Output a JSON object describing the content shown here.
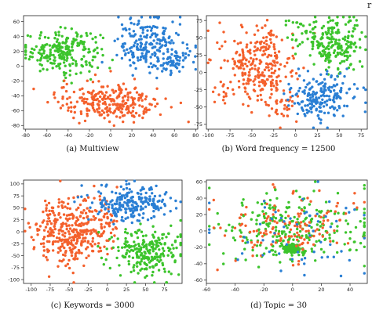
{
  "stray_mark": "r",
  "colors": {
    "orange": "#f4602c",
    "blue": "#2a7fd4",
    "green": "#3cc42c"
  },
  "chart_data": [
    {
      "type": "scatter",
      "caption": "(a) Multiview",
      "xlim": [
        -82,
        82
      ],
      "ylim": [
        -85,
        68
      ],
      "xticks": [
        -80,
        -60,
        -40,
        -20,
        0,
        20,
        40,
        60,
        80
      ],
      "yticks": [
        60,
        40,
        20,
        0,
        -20,
        -40,
        -60,
        -80
      ],
      "series": [
        {
          "color": "green",
          "clusters": [
            {
              "cx": -45,
              "cy": 20,
              "sx": 18,
              "sy": 14,
              "n": 230
            }
          ]
        },
        {
          "color": "blue",
          "clusters": [
            {
              "cx": 38,
              "cy": 28,
              "sx": 16,
              "sy": 18,
              "n": 220
            },
            {
              "cx": 58,
              "cy": 4,
              "sx": 8,
              "sy": 8,
              "n": 40
            }
          ]
        },
        {
          "color": "orange",
          "clusters": [
            {
              "cx": 0,
              "cy": -48,
              "sx": 25,
              "sy": 13,
              "n": 260
            }
          ]
        }
      ]
    },
    {
      "type": "scatter",
      "caption": "(b) Word frequency = 12500",
      "xlim": [
        -102,
        82
      ],
      "ylim": [
        -82,
        82
      ],
      "xticks": [
        -100,
        -75,
        -50,
        -25,
        0,
        25,
        50,
        75
      ],
      "yticks": [
        75,
        50,
        25,
        0,
        -25,
        -50,
        -75
      ],
      "series": [
        {
          "color": "orange",
          "clusters": [
            {
              "cx": -45,
              "cy": 10,
              "sx": 22,
              "sy": 28,
              "n": 280
            },
            {
              "cx": -15,
              "cy": -50,
              "sx": 8,
              "sy": 10,
              "n": 30
            }
          ]
        },
        {
          "color": "green",
          "clusters": [
            {
              "cx": 45,
              "cy": 40,
              "sx": 16,
              "sy": 20,
              "n": 200
            },
            {
              "cx": 5,
              "cy": 60,
              "sx": 10,
              "sy": 10,
              "n": 30
            }
          ]
        },
        {
          "color": "blue",
          "clusters": [
            {
              "cx": 30,
              "cy": -35,
              "sx": 18,
              "sy": 16,
              "n": 190
            }
          ]
        }
      ]
    },
    {
      "type": "scatter",
      "caption": "(c) Keywords = 3000",
      "xlim": [
        -110,
        98
      ],
      "ylim": [
        -108,
        108
      ],
      "xticks": [
        -100,
        -75,
        -50,
        -25,
        0,
        25,
        50,
        75
      ],
      "yticks": [
        100,
        75,
        50,
        25,
        0,
        -25,
        -50,
        -75,
        -100
      ],
      "series": [
        {
          "color": "orange",
          "clusters": [
            {
              "cx": -50,
              "cy": 0,
              "sx": 22,
              "sy": 35,
              "n": 320
            },
            {
              "cx": -5,
              "cy": 20,
              "sx": 10,
              "sy": 30,
              "n": 60
            }
          ]
        },
        {
          "color": "blue",
          "clusters": [
            {
              "cx": 30,
              "cy": 60,
              "sx": 25,
              "sy": 18,
              "n": 230
            }
          ]
        },
        {
          "color": "green",
          "clusters": [
            {
              "cx": 50,
              "cy": -45,
              "sx": 22,
              "sy": 25,
              "n": 250
            }
          ]
        }
      ]
    },
    {
      "type": "scatter",
      "caption": "(d) Topic = 30",
      "xlim": [
        -60,
        52
      ],
      "ylim": [
        -64,
        62
      ],
      "xticks": [
        -60,
        -40,
        -20,
        0,
        20,
        40
      ],
      "yticks": [
        60,
        40,
        20,
        0,
        -20,
        -40,
        -60
      ],
      "series": [
        {
          "color": "green",
          "clusters": [
            {
              "cx": 0,
              "cy": -22,
              "sx": 3,
              "sy": 3,
              "n": 140
            },
            {
              "cx": 0,
              "cy": 5,
              "sx": 28,
              "sy": 22,
              "n": 260
            }
          ]
        },
        {
          "color": "orange",
          "clusters": [
            {
              "cx": -5,
              "cy": 5,
              "sx": 25,
              "sy": 22,
              "n": 140
            }
          ]
        },
        {
          "color": "blue",
          "clusters": [
            {
              "cx": 5,
              "cy": 0,
              "sx": 28,
              "sy": 24,
              "n": 60
            }
          ]
        }
      ]
    }
  ]
}
